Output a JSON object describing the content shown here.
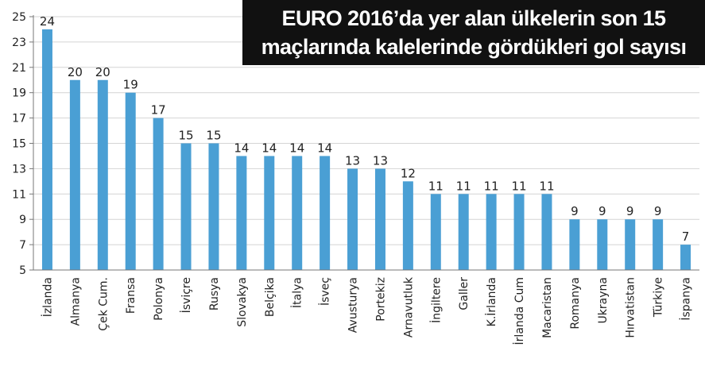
{
  "chart_data": {
    "type": "bar",
    "title": "EURO 2016’da yer alan ülkelerin son 15 maçlarında kalelerinde gördükleri gol sayısı",
    "title_lines": [
      "EURO 2016’da yer alan ülkelerin son 15",
      "maçlarında kalelerinde gördükleri gol sayısı"
    ],
    "xlabel": "",
    "ylabel": "",
    "categories": [
      "İzlanda",
      "Almanya",
      "Çek Cum.",
      "Fransa",
      "Polonya",
      "İsviçre",
      "Rusya",
      "Slovakya",
      "Belçika",
      "İtalya",
      "İsveç",
      "Avusturya",
      "Portekiz",
      "Arnavutluk",
      "İngiltere",
      "Galler",
      "K.İrlanda",
      "İrlanda Cum",
      "Macaristan",
      "Romanya",
      "Ukrayna",
      "Hırvatistan",
      "Türkiye",
      "İspanya"
    ],
    "values": [
      24,
      20,
      20,
      19,
      17,
      15,
      15,
      14,
      14,
      14,
      14,
      13,
      13,
      12,
      11,
      11,
      11,
      11,
      11,
      9,
      9,
      9,
      9,
      7
    ],
    "ylim": [
      5,
      25
    ],
    "yticks": [
      5,
      7,
      9,
      11,
      13,
      15,
      17,
      19,
      21,
      23,
      25
    ],
    "grid": true,
    "legend": "none",
    "bar_color": "#4a9fd4"
  }
}
